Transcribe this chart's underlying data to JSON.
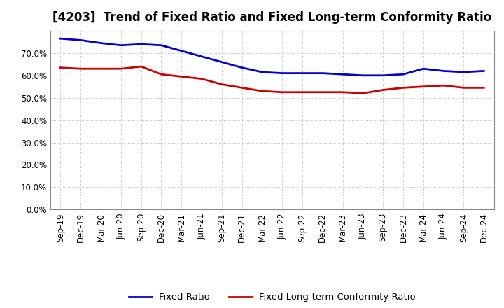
{
  "title": "[4203]  Trend of Fixed Ratio and Fixed Long-term Conformity Ratio",
  "x_labels": [
    "Sep-19",
    "Dec-19",
    "Mar-20",
    "Jun-20",
    "Sep-20",
    "Dec-20",
    "Mar-21",
    "Jun-21",
    "Sep-21",
    "Dec-21",
    "Mar-22",
    "Jun-22",
    "Sep-22",
    "Dec-22",
    "Mar-23",
    "Jun-23",
    "Sep-23",
    "Dec-23",
    "Mar-24",
    "Jun-24",
    "Sep-24",
    "Dec-24"
  ],
  "fixed_ratio": [
    76.5,
    75.8,
    74.5,
    73.5,
    74.0,
    73.5,
    71.0,
    68.5,
    66.0,
    63.5,
    61.5,
    61.0,
    61.0,
    61.0,
    60.5,
    60.0,
    60.0,
    60.5,
    63.0,
    62.0,
    61.5,
    62.0
  ],
  "fixed_lt_ratio": [
    63.5,
    63.0,
    63.0,
    63.0,
    64.0,
    60.5,
    59.5,
    58.5,
    56.0,
    54.5,
    53.0,
    52.5,
    52.5,
    52.5,
    52.5,
    52.0,
    53.5,
    54.5,
    55.0,
    55.5,
    54.5,
    54.5
  ],
  "fixed_ratio_color": "#0000CC",
  "fixed_lt_ratio_color": "#CC0000",
  "background_color": "#FFFFFF",
  "grid_color": "#AAAAAA",
  "ylim": [
    0,
    80
  ],
  "yticks": [
    0,
    10,
    20,
    30,
    40,
    50,
    60,
    70
  ],
  "legend_fixed_ratio": "Fixed Ratio",
  "legend_fixed_lt_ratio": "Fixed Long-term Conformity Ratio",
  "title_fontsize": 12,
  "axis_fontsize": 8.5,
  "legend_fontsize": 9.5,
  "line_width": 2.0
}
